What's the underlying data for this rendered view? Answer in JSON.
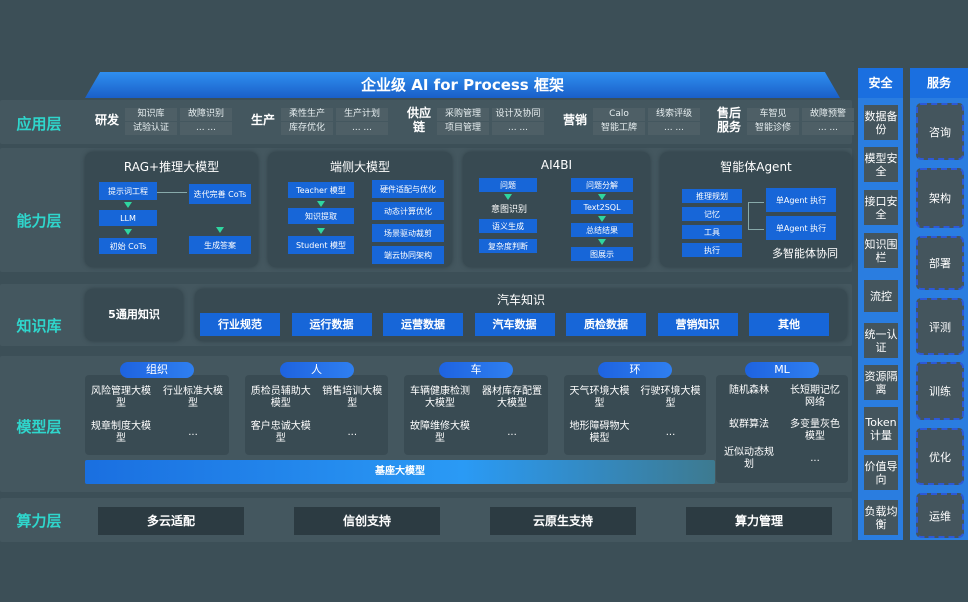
{
  "title": "企业级 AI for Process 框架",
  "layers": {
    "app": "应用层",
    "ability": "能力层",
    "knowledge": "知识库",
    "model": "模型层",
    "compute": "算力层"
  },
  "app": [
    {
      "cat": "研发",
      "items": [
        "知识库",
        "故障识别",
        "试验认证",
        "... ..."
      ]
    },
    {
      "cat": "生产",
      "items": [
        "柔性生产",
        "生产计划",
        "库存优化",
        "... ..."
      ]
    },
    {
      "cat": "供应链",
      "items": [
        "采购管理",
        "设计及协同",
        "项目管理",
        "... ..."
      ]
    },
    {
      "cat": "营销",
      "items": [
        "Calo",
        "线索评级",
        "智能工牌",
        "... ..."
      ]
    },
    {
      "cat": "售后服务",
      "items": [
        "车智见",
        "故障预警",
        "智能诊修",
        "... ..."
      ]
    }
  ],
  "ability": {
    "rag": {
      "title": "RAG+推理大模型",
      "a": "提示词工程",
      "b": "LLM",
      "c": "初始 CoTs",
      "d": "迭代完善 CoTs",
      "e": "生成答案"
    },
    "edge": {
      "title": "端侧大模型",
      "a": "Teacher 模型",
      "b": "知识提取",
      "c": "Student 模型",
      "r": [
        "硬件适配与优化",
        "动态计算优化",
        "场景驱动裁剪",
        "端云协同架构"
      ]
    },
    "bi": {
      "title": "AI4BI",
      "a": "问题",
      "b": "意图识别",
      "c": "语义生成",
      "d": "复杂度判断",
      "e": "问题分解",
      "f": "Text2SQL",
      "g": "总结结果",
      "h": "图展示"
    },
    "agent": {
      "title": "智能体Agent",
      "l": [
        "推理规划",
        "记忆",
        "工具",
        "执行"
      ],
      "r1": "单Agent 执行",
      "r2": "单Agent 执行",
      "foot": "多智能体协同"
    }
  },
  "knowledge": {
    "general": "5通用知识",
    "auto_title": "汽车知识",
    "items": [
      "行业规范",
      "运行数据",
      "运营数据",
      "汽车数据",
      "质检数据",
      "营销知识",
      "其他"
    ]
  },
  "models": [
    {
      "pill": "组织",
      "items": [
        "风险管理大模型",
        "行业标准大模型",
        "规章制度大模型",
        "..."
      ]
    },
    {
      "pill": "人",
      "items": [
        "质检员辅助大模型",
        "销售培训大模型",
        "客户忠诚大模型",
        "..."
      ]
    },
    {
      "pill": "车",
      "items": [
        "车辆健康检测大模型",
        "器材库存配置大模型",
        "故障维修大模型",
        "..."
      ]
    },
    {
      "pill": "环",
      "items": [
        "天气环境大模型",
        "行驶环境大模型",
        "地形障碍物大模型",
        "..."
      ]
    },
    {
      "pill": "ML",
      "items": [
        "随机森林",
        "长短期记忆网络",
        "蚁群算法",
        "多变量灰色模型",
        "近似动态规划",
        "..."
      ]
    }
  ],
  "base_model": "基座大模型",
  "compute": [
    "多云适配",
    "信创支持",
    "云原生支持",
    "算力管理"
  ],
  "security": {
    "title": "安全",
    "items": [
      "数据备份",
      "模型安全",
      "接口安全",
      "知识围栏",
      "流控",
      "统一认证",
      "资源隔离",
      "Token计量",
      "价值导向",
      "负载均衡"
    ]
  },
  "service": {
    "title": "服务",
    "items": [
      "咨询",
      "架构",
      "部署",
      "评测",
      "训练",
      "优化",
      "运维"
    ]
  }
}
